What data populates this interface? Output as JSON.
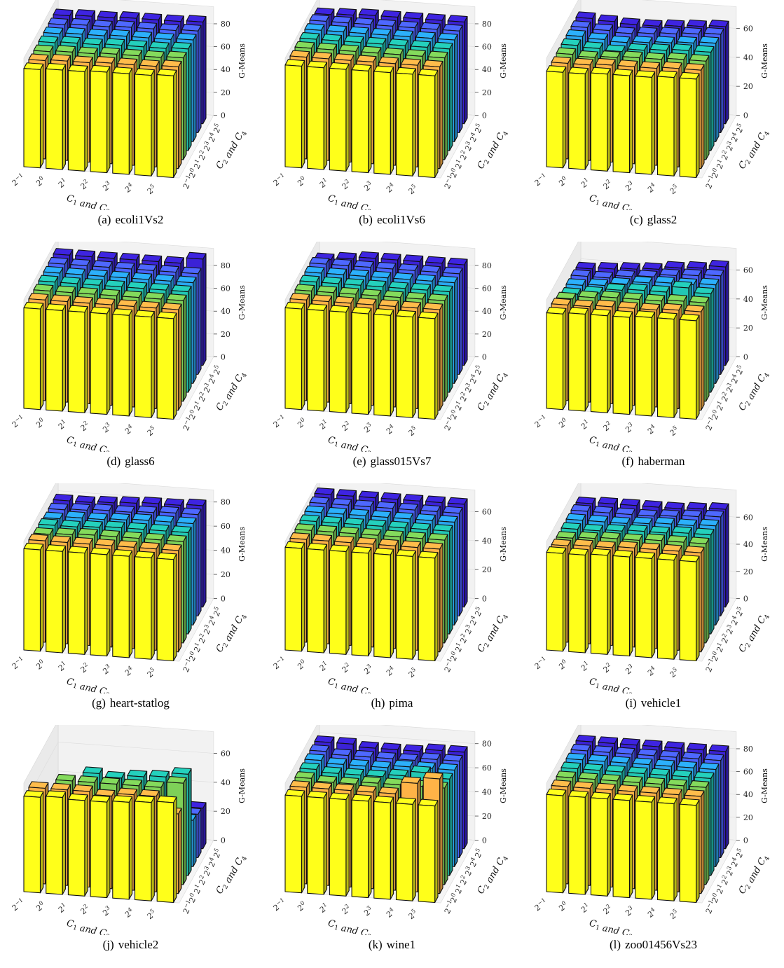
{
  "chart_data": [
    {
      "type": "bar3d",
      "caption_label": "(a)",
      "caption_name": "ecoli1Vs2",
      "xlabel": "C_1 and C_3",
      "ylabel": "C_2 and C_4",
      "zlabel": "G-Means",
      "x_categories": [
        "2^-1",
        "2^0",
        "2^1",
        "2^2",
        "2^3",
        "2^4",
        "2^5"
      ],
      "y_categories": [
        "2^-1",
        "2^0",
        "2^1",
        "2^2",
        "2^3",
        "2^4",
        "2^5"
      ],
      "zlim": [
        0,
        95
      ],
      "zticks": [
        0,
        20,
        40,
        60,
        80
      ],
      "values": [
        [
          86,
          87,
          87,
          88,
          88,
          88,
          89
        ],
        [
          86,
          87,
          87,
          88,
          88,
          88,
          89
        ],
        [
          86,
          87,
          87,
          88,
          88,
          88,
          89
        ],
        [
          86,
          87,
          87,
          88,
          88,
          88,
          89
        ],
        [
          86,
          87,
          87,
          88,
          88,
          88,
          89
        ],
        [
          86,
          87,
          87,
          88,
          88,
          88,
          89
        ],
        [
          86,
          87,
          87,
          88,
          88,
          88,
          89
        ]
      ]
    },
    {
      "type": "bar3d",
      "caption_label": "(b)",
      "caption_name": "ecoli1Vs6",
      "xlabel": "C_1 and C_3",
      "ylabel": "C_2 and C_4",
      "zlabel": "G-Means",
      "x_categories": [
        "2^-1",
        "2^0",
        "2^1",
        "2^2",
        "2^3",
        "2^4",
        "2^5"
      ],
      "y_categories": [
        "2^-1",
        "2^0",
        "2^1",
        "2^2",
        "2^3",
        "2^4",
        "2^5"
      ],
      "zlim": [
        0,
        95
      ],
      "zticks": [
        0,
        20,
        40,
        60,
        80
      ],
      "values": [
        [
          89,
          89,
          89,
          89,
          89,
          89,
          89
        ],
        [
          89,
          89,
          89,
          89,
          89,
          89,
          89
        ],
        [
          89,
          89,
          89,
          89,
          89,
          89,
          89
        ],
        [
          89,
          89,
          89,
          89,
          89,
          89,
          89
        ],
        [
          89,
          89,
          89,
          89,
          89,
          89,
          89
        ],
        [
          89,
          89,
          89,
          89,
          89,
          89,
          89
        ],
        [
          87,
          88,
          89,
          89,
          89,
          89,
          89
        ]
      ]
    },
    {
      "type": "bar3d",
      "caption_label": "(c)",
      "caption_name": "glass2",
      "xlabel": "C_1 and C_3",
      "ylabel": "C_2 and C_4",
      "zlabel": "G-Means",
      "x_categories": [
        "2^-1",
        "2^0",
        "2^1",
        "2^2",
        "2^3",
        "2^4",
        "2^5"
      ],
      "y_categories": [
        "2^-1",
        "2^0",
        "2^1",
        "2^2",
        "2^3",
        "2^4",
        "2^5"
      ],
      "zlim": [
        0,
        75
      ],
      "zticks": [
        0,
        20,
        40,
        60
      ],
      "values": [
        [
          66,
          66,
          67,
          67,
          67,
          68,
          68
        ],
        [
          66,
          66,
          67,
          67,
          67,
          68,
          68
        ],
        [
          66,
          65,
          66,
          67,
          67,
          68,
          68
        ],
        [
          66,
          65,
          64,
          66,
          67,
          68,
          68
        ],
        [
          66,
          65,
          64,
          65,
          66,
          67,
          68
        ],
        [
          66,
          65,
          64,
          65,
          66,
          67,
          68
        ],
        [
          66,
          65,
          64,
          64,
          65,
          66,
          67
        ]
      ]
    },
    {
      "type": "bar3d",
      "caption_label": "(d)",
      "caption_name": "glass6",
      "xlabel": "C_1 and C_3",
      "ylabel": "C_2 and C_4",
      "zlabel": "G-Means",
      "x_categories": [
        "2^-1",
        "2^0",
        "2^1",
        "2^2",
        "2^3",
        "2^4",
        "2^5"
      ],
      "y_categories": [
        "2^-1",
        "2^0",
        "2^1",
        "2^2",
        "2^3",
        "2^4",
        "2^5"
      ],
      "zlim": [
        0,
        95
      ],
      "zticks": [
        0,
        20,
        40,
        60,
        80
      ],
      "values": [
        [
          88,
          88,
          88,
          88,
          88,
          88,
          88
        ],
        [
          88,
          88,
          88,
          88,
          88,
          88,
          88
        ],
        [
          88,
          88,
          88,
          88,
          88,
          88,
          88
        ],
        [
          88,
          88,
          88,
          88,
          88,
          88,
          88
        ],
        [
          88,
          88,
          88,
          88,
          88,
          88,
          88
        ],
        [
          88,
          88,
          88,
          88,
          88,
          88,
          88
        ],
        [
          88,
          88,
          88,
          88,
          88,
          88,
          93
        ]
      ]
    },
    {
      "type": "bar3d",
      "caption_label": "(e)",
      "caption_name": "glass015Vs7",
      "xlabel": "C_1 and C_3",
      "ylabel": "C_2 and C_4",
      "zlabel": "G-Means",
      "x_categories": [
        "2^-1",
        "2^0",
        "2^1",
        "2^2",
        "2^3",
        "2^4",
        "2^5"
      ],
      "y_categories": [
        "2^-1",
        "2^0",
        "2^1",
        "2^2",
        "2^3",
        "2^4",
        "2^5"
      ],
      "zlim": [
        0,
        95
      ],
      "zticks": [
        0,
        20,
        40,
        60,
        80
      ],
      "values": [
        [
          88,
          88,
          88,
          88,
          88,
          88,
          88
        ],
        [
          88,
          88,
          88,
          88,
          88,
          88,
          88
        ],
        [
          88,
          88,
          88,
          88,
          88,
          88,
          88
        ],
        [
          88,
          88,
          88,
          88,
          88,
          88,
          88
        ],
        [
          88,
          88,
          88,
          88,
          88,
          88,
          88
        ],
        [
          88,
          88,
          88,
          88,
          88,
          88,
          88
        ],
        [
          84,
          86,
          88,
          88,
          88,
          88,
          88
        ]
      ]
    },
    {
      "type": "bar3d",
      "caption_label": "(f)",
      "caption_name": "haberman",
      "xlabel": "C_1 and C_3",
      "ylabel": "C_2 and C_4",
      "zlabel": "G-Means",
      "x_categories": [
        "2^-1",
        "2^0",
        "2^1",
        "2^2",
        "2^3",
        "2^4",
        "2^5"
      ],
      "y_categories": [
        "2^-1",
        "2^0",
        "2^1",
        "2^2",
        "2^3",
        "2^4",
        "2^5"
      ],
      "zlim": [
        0,
        75
      ],
      "zticks": [
        0,
        20,
        40,
        60
      ],
      "values": [
        [
          66,
          67,
          67,
          67,
          68,
          68,
          68
        ],
        [
          66,
          66,
          67,
          67,
          67,
          68,
          68
        ],
        [
          64,
          66,
          67,
          67,
          67,
          68,
          68
        ],
        [
          61,
          63,
          66,
          67,
          67,
          71,
          68
        ],
        [
          61,
          62,
          64,
          66,
          67,
          67,
          68
        ],
        [
          61,
          61,
          63,
          64,
          66,
          67,
          68
        ],
        [
          60,
          61,
          62,
          63,
          65,
          66,
          68
        ]
      ]
    },
    {
      "type": "bar3d",
      "caption_label": "(g)",
      "caption_name": "heart-statlog",
      "xlabel": "C_1 and C_3",
      "ylabel": "C_2 and C_4",
      "zlabel": "G-Means",
      "x_categories": [
        "2^-1",
        "2^0",
        "2^1",
        "2^2",
        "2^3",
        "2^4",
        "2^5"
      ],
      "y_categories": [
        "2^-1",
        "2^0",
        "2^1",
        "2^2",
        "2^3",
        "2^4",
        "2^5"
      ],
      "zlim": [
        0,
        90
      ],
      "zticks": [
        0,
        20,
        40,
        60,
        80
      ],
      "values": [
        [
          84,
          84,
          84,
          84,
          84,
          84,
          84
        ],
        [
          84,
          84,
          84,
          84,
          84,
          84,
          84
        ],
        [
          82,
          83,
          84,
          84,
          84,
          84,
          84
        ],
        [
          82,
          82,
          83,
          84,
          84,
          84,
          84
        ],
        [
          80,
          82,
          82,
          83,
          84,
          84,
          84
        ],
        [
          80,
          81,
          82,
          82,
          83,
          84,
          84
        ],
        [
          80,
          80,
          81,
          82,
          83,
          83,
          84
        ]
      ]
    },
    {
      "type": "bar3d",
      "caption_label": "(h)",
      "caption_name": "pima",
      "xlabel": "C_1 and C_3",
      "ylabel": "C_2 and C_4",
      "zlabel": "G-Means",
      "x_categories": [
        "2^-1",
        "2^0",
        "2^1",
        "2^2",
        "2^3",
        "2^4",
        "2^5"
      ],
      "y_categories": [
        "2^-1",
        "2^0",
        "2^1",
        "2^2",
        "2^3",
        "2^4",
        "2^5"
      ],
      "zlim": [
        0,
        75
      ],
      "zticks": [
        0,
        20,
        40,
        60
      ],
      "values": [
        [
          71,
          71,
          71,
          71,
          71,
          71,
          71
        ],
        [
          71,
          71,
          71,
          71,
          71,
          71,
          71
        ],
        [
          71,
          71,
          71,
          71,
          71,
          71,
          71
        ],
        [
          71,
          71,
          71,
          71,
          71,
          71,
          71
        ],
        [
          71,
          71,
          71,
          71,
          71,
          71,
          71
        ],
        [
          71,
          71,
          71,
          71,
          71,
          71,
          71
        ],
        [
          71,
          71,
          71,
          71,
          71,
          71,
          71
        ]
      ]
    },
    {
      "type": "bar3d",
      "caption_label": "(i)",
      "caption_name": "vehicle1",
      "xlabel": "C_1 and C_3",
      "ylabel": "C_2 and C_4",
      "zlabel": "G-Means",
      "x_categories": [
        "2^-1",
        "2^0",
        "2^1",
        "2^2",
        "2^3",
        "2^4",
        "2^5"
      ],
      "y_categories": [
        "2^-1",
        "2^0",
        "2^1",
        "2^2",
        "2^3",
        "2^4",
        "2^5"
      ],
      "zlim": [
        0,
        80
      ],
      "zticks": [
        0,
        20,
        40,
        60
      ],
      "values": [
        [
          72,
          72,
          73,
          73,
          73,
          73,
          73
        ],
        [
          71,
          72,
          72,
          73,
          73,
          73,
          73
        ],
        [
          70,
          71,
          72,
          72,
          73,
          73,
          73
        ],
        [
          70,
          70,
          71,
          72,
          72,
          73,
          73
        ],
        [
          70,
          70,
          70,
          71,
          72,
          72,
          73
        ],
        [
          70,
          70,
          70,
          70,
          71,
          72,
          73
        ],
        [
          69,
          70,
          70,
          70,
          70,
          71,
          72
        ]
      ]
    },
    {
      "type": "bar3d",
      "caption_label": "(j)",
      "caption_name": "vehicle2",
      "xlabel": "C_1 and C_3",
      "ylabel": "C_2 and C_4",
      "zlabel": "G-Means",
      "x_categories": [
        "2^-1",
        "2^0",
        "2^1",
        "2^2",
        "2^3",
        "2^4",
        "2^5"
      ],
      "y_categories": [
        "2^-1",
        "2^0",
        "2^1",
        "2^2",
        "2^3",
        "2^4",
        "2^5"
      ],
      "zlim": [
        0,
        75
      ],
      "zticks": [
        0,
        20,
        40,
        60
      ],
      "values": [
        [
          66,
          67,
          66,
          66,
          67,
          68,
          69
        ],
        [
          66,
          66,
          66,
          64,
          66,
          66,
          55
        ],
        [
          30,
          66,
          66,
          66,
          66,
          66,
          70
        ],
        [
          28,
          30,
          66,
          64,
          66,
          67,
          70
        ],
        [
          26,
          22,
          28,
          26,
          28,
          28,
          32
        ],
        [
          26,
          24,
          26,
          24,
          26,
          28,
          30
        ],
        [
          24,
          22,
          22,
          24,
          24,
          26,
          28
        ]
      ]
    },
    {
      "type": "bar3d",
      "caption_label": "(k)",
      "caption_name": "wine1",
      "xlabel": "C_1 and C_3",
      "ylabel": "C_2 and C_4",
      "zlabel": "G-Means",
      "x_categories": [
        "2^-1",
        "2^0",
        "2^1",
        "2^2",
        "2^3",
        "2^4",
        "2^5"
      ],
      "y_categories": [
        "2^-1",
        "2^0",
        "2^1",
        "2^2",
        "2^3",
        "2^4",
        "2^5"
      ],
      "zlim": [
        0,
        90
      ],
      "zticks": [
        0,
        20,
        40,
        60,
        80
      ],
      "values": [
        [
          80,
          80,
          80,
          80,
          80,
          80,
          80
        ],
        [
          80,
          80,
          80,
          80,
          80,
          90,
          95
        ],
        [
          80,
          78,
          78,
          80,
          80,
          80,
          80
        ],
        [
          80,
          78,
          78,
          78,
          80,
          84,
          80
        ],
        [
          80,
          78,
          78,
          78,
          80,
          80,
          80
        ],
        [
          80,
          78,
          78,
          78,
          78,
          80,
          80
        ],
        [
          80,
          80,
          78,
          78,
          78,
          80,
          80
        ]
      ]
    },
    {
      "type": "bar3d",
      "caption_label": "(l)",
      "caption_name": "zoo01456Vs23",
      "xlabel": "C_1 and C_3",
      "ylabel": "C_2 and C_4",
      "zlabel": "G-Means",
      "x_categories": [
        "2^-1",
        "2^0",
        "2^1",
        "2^2",
        "2^3",
        "2^4",
        "2^5"
      ],
      "y_categories": [
        "2^-1",
        "2^0",
        "2^1",
        "2^2",
        "2^3",
        "2^4",
        "2^5"
      ],
      "zlim": [
        0,
        95
      ],
      "zticks": [
        0,
        20,
        40,
        60,
        80
      ],
      "values": [
        [
          85,
          85,
          85,
          85,
          85,
          85,
          85
        ],
        [
          85,
          85,
          85,
          85,
          85,
          85,
          85
        ],
        [
          85,
          85,
          85,
          85,
          85,
          85,
          85
        ],
        [
          85,
          85,
          85,
          85,
          85,
          85,
          85
        ],
        [
          85,
          85,
          85,
          85,
          85,
          85,
          85
        ],
        [
          85,
          85,
          85,
          85,
          85,
          85,
          85
        ],
        [
          85,
          85,
          85,
          85,
          85,
          85,
          85
        ]
      ]
    }
  ],
  "row_colors": [
    "#ffff1a",
    "#ffb347",
    "#7ed158",
    "#22c7b4",
    "#2aa8f0",
    "#4a63ff",
    "#3b22d6"
  ]
}
